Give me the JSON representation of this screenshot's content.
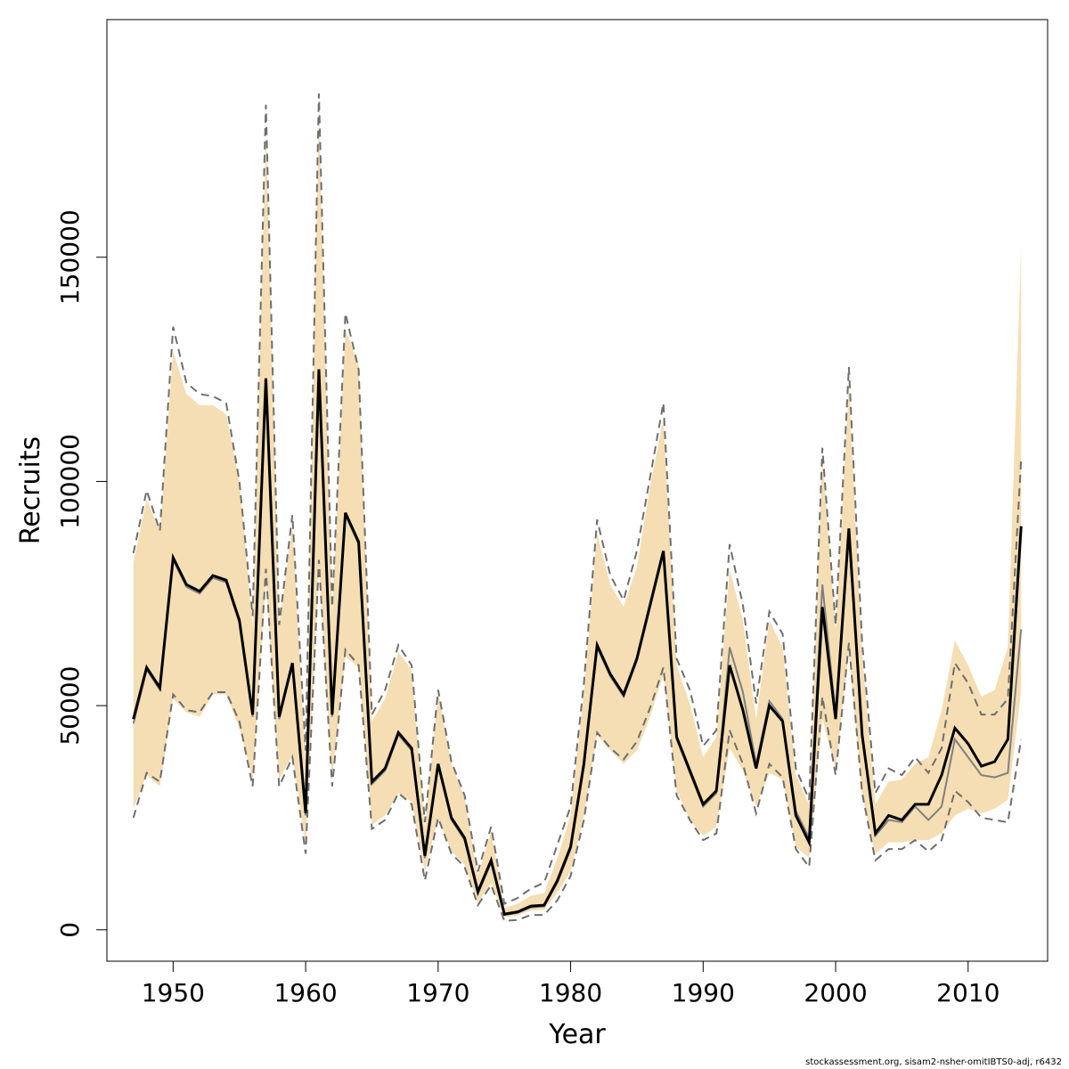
{
  "chart_data": {
    "type": "line",
    "xlabel": "Year",
    "ylabel": "Recruits",
    "xlim": [
      1945,
      2016
    ],
    "ylim": [
      -7000,
      203000
    ],
    "x_ticks": [
      1950,
      1960,
      1970,
      1980,
      1990,
      2000,
      2010
    ],
    "y_ticks": [
      0,
      50000,
      100000,
      150000
    ],
    "x_tick_labels": [
      "1950",
      "1960",
      "1970",
      "1980",
      "1990",
      "2000",
      "2010"
    ],
    "y_tick_labels": [
      "0",
      "50000",
      "100000",
      "150000"
    ],
    "grid": false,
    "legend": "none",
    "colors": {
      "band": "#f5deb3",
      "estimate": "#000000",
      "reference": "#808080",
      "bounds": "#6e6e6e"
    },
    "x": [
      1947,
      1948,
      1949,
      1950,
      1951,
      1952,
      1953,
      1954,
      1955,
      1956,
      1957,
      1958,
      1959,
      1960,
      1961,
      1962,
      1963,
      1964,
      1965,
      1966,
      1967,
      1968,
      1969,
      1970,
      1971,
      1972,
      1973,
      1974,
      1975,
      1976,
      1977,
      1978,
      1979,
      1980,
      1981,
      1982,
      1983,
      1984,
      1985,
      1986,
      1987,
      1988,
      1989,
      1990,
      1991,
      1992,
      1993,
      1994,
      1995,
      1996,
      1997,
      1998,
      1999,
      2000,
      2001,
      2002,
      2003,
      2004,
      2005,
      2006,
      2007,
      2008,
      2009,
      2010,
      2011,
      2012,
      2013,
      2014
    ],
    "series": [
      {
        "role": "estimate",
        "values": [
          47000,
          58500,
          54000,
          83000,
          77000,
          75500,
          79000,
          78000,
          69000,
          48000,
          123000,
          47500,
          59500,
          26000,
          125000,
          48000,
          93000,
          86500,
          33000,
          36000,
          44000,
          40500,
          16500,
          37000,
          25000,
          20500,
          8500,
          15500,
          3500,
          4000,
          5300,
          5500,
          11000,
          18500,
          37000,
          63500,
          57000,
          52500,
          60500,
          72500,
          84500,
          43000,
          35500,
          28000,
          31000,
          59000,
          49000,
          36000,
          50000,
          46500,
          25500,
          19500,
          72000,
          47000,
          89500,
          43500,
          21500,
          25500,
          24500,
          28000,
          28000,
          34500,
          45000,
          41500,
          36500,
          37500,
          42500,
          90000
        ]
      },
      {
        "role": "reference",
        "values": [
          46000,
          58000,
          53500,
          82500,
          76500,
          75000,
          78500,
          77500,
          68500,
          47500,
          122000,
          47000,
          59000,
          25500,
          124000,
          47500,
          92500,
          86000,
          32500,
          35500,
          43500,
          40000,
          16000,
          36500,
          24500,
          20000,
          8000,
          15000,
          3300,
          3800,
          5000,
          5200,
          10500,
          18000,
          36500,
          63000,
          56500,
          52000,
          60000,
          72000,
          84000,
          42500,
          35000,
          27500,
          30500,
          63000,
          53000,
          37000,
          51000,
          47000,
          26500,
          20500,
          77000,
          48000,
          88000,
          44000,
          21000,
          24500,
          24000,
          27500,
          24500,
          27500,
          42500,
          38500,
          34500,
          34000,
          35000,
          67000
        ]
      },
      {
        "role": "upper_bound",
        "values": [
          84000,
          98000,
          89000,
          134500,
          122000,
          119500,
          119000,
          117500,
          100000,
          70000,
          184000,
          68000,
          92500,
          40000,
          186500,
          72000,
          137500,
          125000,
          48000,
          53500,
          63500,
          59000,
          24000,
          53500,
          37500,
          30000,
          13000,
          23000,
          5800,
          7100,
          9200,
          10500,
          19000,
          27500,
          55000,
          91500,
          79000,
          73500,
          84500,
          101000,
          117500,
          60500,
          53500,
          41000,
          44500,
          86000,
          72500,
          50500,
          71000,
          66000,
          36000,
          29000,
          107500,
          68000,
          125500,
          64000,
          30500,
          36000,
          34500,
          38500,
          35000,
          40500,
          59500,
          55000,
          48000,
          48000,
          51500,
          105000
        ]
      },
      {
        "role": "lower_bound",
        "values": [
          25000,
          35000,
          33000,
          52500,
          49000,
          48500,
          53000,
          53000,
          46500,
          32000,
          80500,
          32000,
          38500,
          17000,
          82500,
          32000,
          62500,
          59000,
          22500,
          24500,
          30500,
          28000,
          11000,
          25000,
          17000,
          14000,
          5500,
          10000,
          2000,
          2200,
          3300,
          3300,
          6600,
          12000,
          24500,
          44000,
          40500,
          38000,
          42000,
          49500,
          58500,
          30000,
          24500,
          20000,
          21500,
          44500,
          37000,
          26000,
          37000,
          34000,
          18000,
          14000,
          52000,
          34500,
          64000,
          30500,
          15500,
          18000,
          18000,
          20000,
          17500,
          20000,
          31000,
          28500,
          25000,
          24500,
          24000,
          42500
        ]
      },
      {
        "role": "band_upper",
        "values": [
          82000,
          96000,
          89000,
          129000,
          119500,
          117000,
          117000,
          115000,
          100000,
          67500,
          178000,
          68000,
          90000,
          37500,
          182000,
          70000,
          134000,
          126000,
          46500,
          51500,
          62000,
          58000,
          22500,
          53000,
          37000,
          29500,
          12000,
          22000,
          4900,
          5800,
          7600,
          8200,
          16000,
          25500,
          53000,
          88500,
          77000,
          72000,
          81000,
          99000,
          114000,
          59000,
          50500,
          38500,
          43000,
          80500,
          69000,
          47000,
          69000,
          63000,
          34500,
          28000,
          105500,
          67000,
          121000,
          61500,
          28000,
          33000,
          33500,
          37000,
          38500,
          49000,
          64500,
          59000,
          52000,
          53500,
          63000,
          152000
        ]
      },
      {
        "role": "band_lower",
        "values": [
          27000,
          34500,
          32000,
          51500,
          48500,
          47500,
          52500,
          52500,
          45000,
          33500,
          78000,
          33500,
          39000,
          19000,
          80500,
          33500,
          61000,
          58500,
          23500,
          25500,
          30500,
          28500,
          13000,
          25000,
          17500,
          14500,
          6000,
          10500,
          2800,
          3200,
          4300,
          4500,
          8300,
          13000,
          25500,
          43500,
          40000,
          37000,
          40000,
          47500,
          57000,
          31000,
          24500,
          21000,
          23000,
          40500,
          35500,
          27500,
          35000,
          33500,
          18500,
          16000,
          47000,
          36000,
          62000,
          30000,
          17000,
          19500,
          19500,
          20000,
          20000,
          21500,
          25500,
          27000,
          26000,
          27000,
          29000,
          53000
        ]
      }
    ]
  },
  "footer": {
    "credit": "stockassessment.org, sisam2-nsher-omitIBTS0-adj, r6432"
  }
}
